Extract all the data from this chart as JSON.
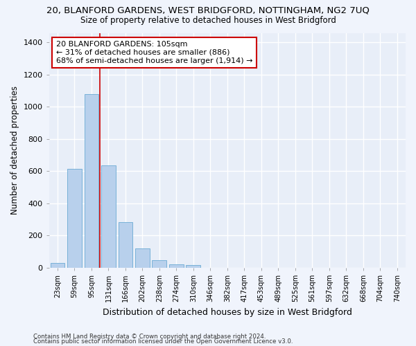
{
  "title": "20, BLANFORD GARDENS, WEST BRIDGFORD, NOTTINGHAM, NG2 7UQ",
  "subtitle": "Size of property relative to detached houses in West Bridgford",
  "xlabel": "Distribution of detached houses by size in West Bridgford",
  "ylabel": "Number of detached properties",
  "bar_color": "#b8d0ec",
  "bar_edgecolor": "#6aaad4",
  "background_color": "#e8eef8",
  "fig_background_color": "#f0f4fc",
  "grid_color": "#ffffff",
  "vline_color": "#cc0000",
  "vline_x_index": 2,
  "annotation_text": "20 BLANFORD GARDENS: 105sqm\n← 31% of detached houses are smaller (886)\n68% of semi-detached houses are larger (1,914) →",
  "categories": [
    "23sqm",
    "59sqm",
    "95sqm",
    "131sqm",
    "166sqm",
    "202sqm",
    "238sqm",
    "274sqm",
    "310sqm",
    "346sqm",
    "382sqm",
    "417sqm",
    "453sqm",
    "489sqm",
    "525sqm",
    "561sqm",
    "597sqm",
    "632sqm",
    "668sqm",
    "704sqm",
    "740sqm"
  ],
  "values": [
    30,
    615,
    1080,
    635,
    285,
    120,
    47,
    22,
    15,
    0,
    0,
    0,
    0,
    0,
    0,
    0,
    0,
    0,
    0,
    0,
    0
  ],
  "ylim": [
    0,
    1460
  ],
  "yticks": [
    0,
    200,
    400,
    600,
    800,
    1000,
    1200,
    1400
  ],
  "footnote1": "Contains HM Land Registry data © Crown copyright and database right 2024.",
  "footnote2": "Contains public sector information licensed under the Open Government Licence v3.0."
}
